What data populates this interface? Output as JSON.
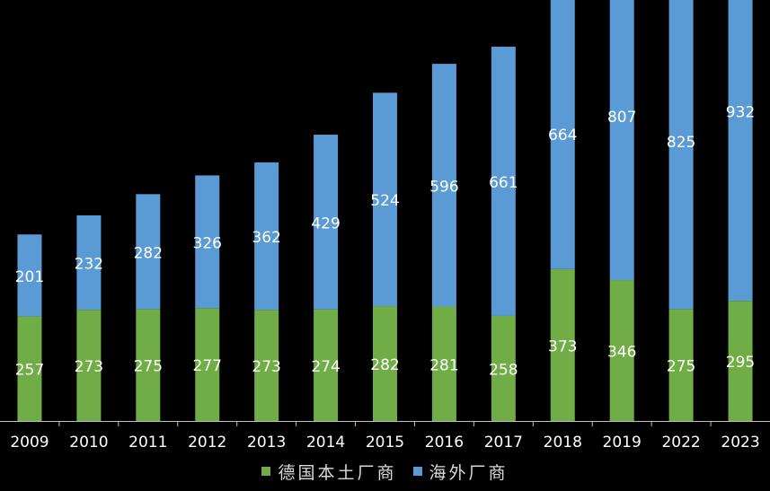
{
  "chart_data": {
    "type": "bar",
    "stacked": true,
    "categories": [
      "2009",
      "2010",
      "2011",
      "2012",
      "2013",
      "2014",
      "2015",
      "2016",
      "2017",
      "2018",
      "2019",
      "2022",
      "2023"
    ],
    "series": [
      {
        "name": "德国本土厂商",
        "color": "#70ad47",
        "values": [
          257,
          273,
          275,
          277,
          273,
          274,
          282,
          281,
          258,
          373,
          346,
          275,
          295
        ]
      },
      {
        "name": "海外厂商",
        "color": "#5b9bd5",
        "values": [
          201,
          232,
          282,
          326,
          362,
          429,
          524,
          596,
          661,
          664,
          807,
          825,
          932
        ]
      }
    ],
    "ylim": [
      0,
      1320
    ],
    "title": "",
    "xlabel": "",
    "ylabel": "",
    "grid": false,
    "legend_position": "bottom"
  },
  "colors": {
    "background": "#000000",
    "axis": "#bfbfbf",
    "text": "#ffffff",
    "tick_text": "#ffffff",
    "legend_text": "#d9d9d9"
  }
}
